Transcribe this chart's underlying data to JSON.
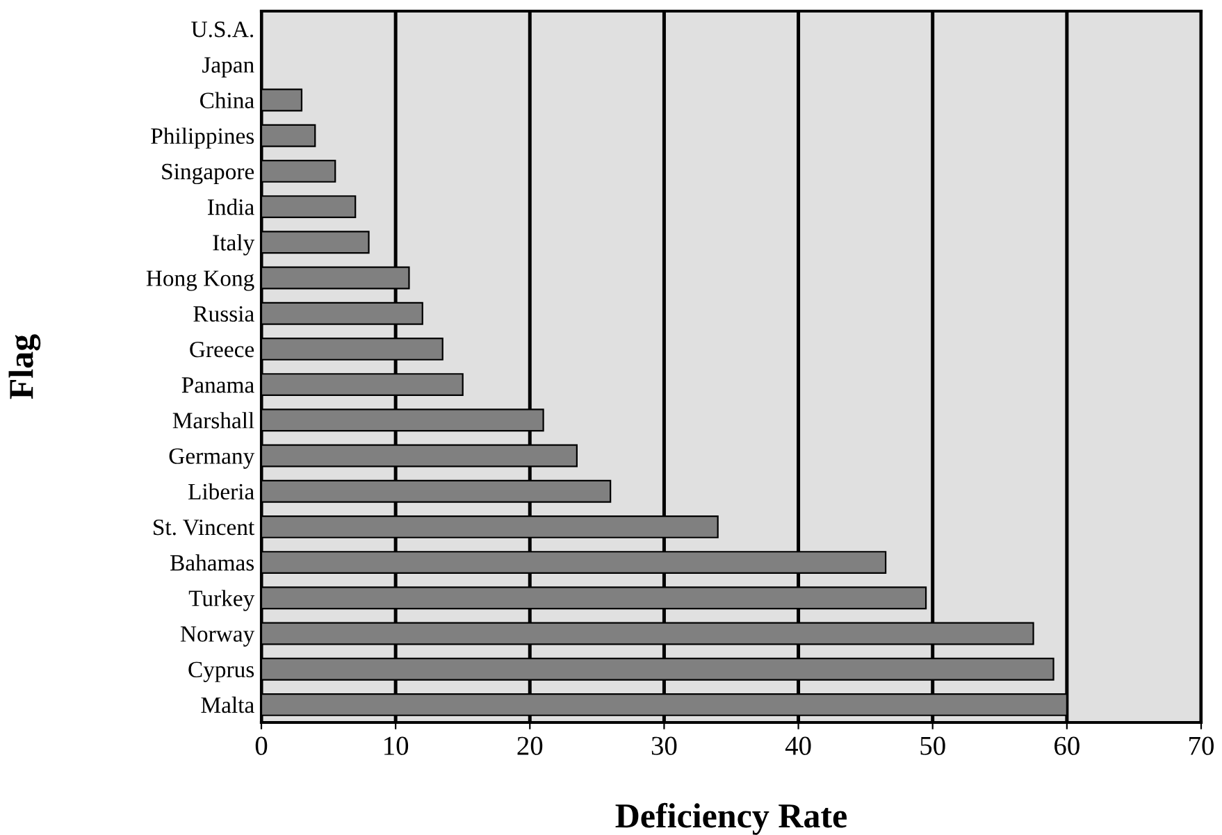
{
  "chart_data": {
    "type": "bar",
    "orientation": "horizontal",
    "xlabel": "Deficiency Rate",
    "ylabel": "Flag",
    "categories": [
      "U.S.A.",
      "Japan",
      "China",
      "Philippines",
      "Singapore",
      "India",
      "Italy",
      "Hong Kong",
      "Russia",
      "Greece",
      "Panama",
      "Marshall",
      "Germany",
      "Liberia",
      "St. Vincent",
      "Bahamas",
      "Turkey",
      "Norway",
      "Cyprus",
      "Malta"
    ],
    "values": [
      0,
      0,
      3,
      4,
      5.5,
      7,
      8,
      11,
      12,
      13.5,
      15,
      21,
      23.5,
      26,
      34,
      46.5,
      49.5,
      57.5,
      59,
      60
    ],
    "color": "#808080",
    "xlim": [
      0,
      70
    ],
    "xticks": [
      0,
      10,
      20,
      30,
      40,
      50,
      60,
      70
    ],
    "grid": "x"
  }
}
